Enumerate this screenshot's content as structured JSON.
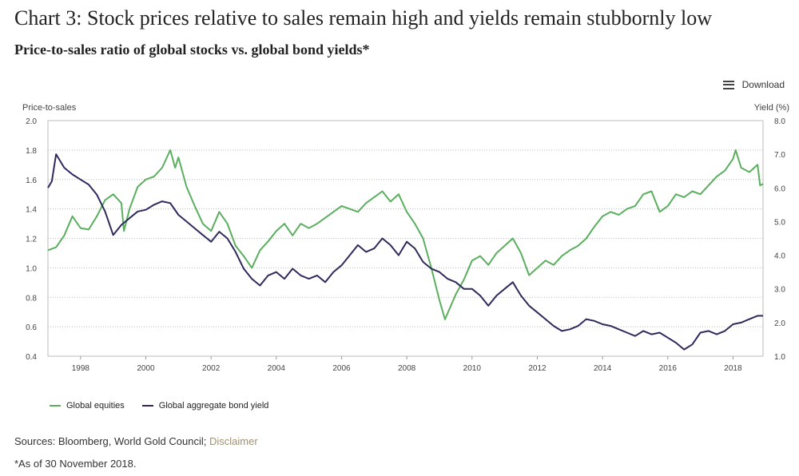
{
  "header": {
    "title": "Chart 3: Stock prices relative to sales remain high and yields remain stubbornly low",
    "subtitle": "Price-to-sales ratio of global stocks vs. global bond yields*"
  },
  "toolbar": {
    "download_label": "Download",
    "download_icon": "menu-icon"
  },
  "chart_data": {
    "type": "line",
    "left_axis": {
      "label": "Price-to-sales",
      "range": [
        0.4,
        2.0
      ],
      "ticks": [
        "2.0",
        "1.8",
        "1.6",
        "1.4",
        "1.2",
        "1.0",
        "0.8",
        "0.6",
        "0.4"
      ]
    },
    "right_axis": {
      "label": "Yield (%)",
      "range": [
        1.0,
        8.0
      ],
      "ticks": [
        "8.0",
        "7.0",
        "6.0",
        "5.0",
        "4.0",
        "3.0",
        "2.0",
        "1.0"
      ]
    },
    "x_axis": {
      "range": [
        1997.0,
        2018.92
      ],
      "ticks": [
        "1998",
        "2000",
        "2002",
        "2004",
        "2006",
        "2008",
        "2010",
        "2012",
        "2014",
        "2016",
        "2018"
      ]
    },
    "grid": "horizontal dotted",
    "legend_position": "bottom-left",
    "series": [
      {
        "name": "Global equities",
        "axis": "left",
        "color": "#5aaf5e",
        "points": [
          [
            1997.0,
            1.12
          ],
          [
            1997.25,
            1.14
          ],
          [
            1997.5,
            1.22
          ],
          [
            1997.75,
            1.35
          ],
          [
            1998.0,
            1.27
          ],
          [
            1998.25,
            1.26
          ],
          [
            1998.5,
            1.35
          ],
          [
            1998.75,
            1.46
          ],
          [
            1999.0,
            1.5
          ],
          [
            1999.25,
            1.44
          ],
          [
            1999.33,
            1.25
          ],
          [
            1999.5,
            1.4
          ],
          [
            1999.75,
            1.55
          ],
          [
            2000.0,
            1.6
          ],
          [
            2000.25,
            1.62
          ],
          [
            2000.5,
            1.68
          ],
          [
            2000.75,
            1.8
          ],
          [
            2000.9,
            1.68
          ],
          [
            2001.0,
            1.75
          ],
          [
            2001.25,
            1.55
          ],
          [
            2001.5,
            1.42
          ],
          [
            2001.75,
            1.3
          ],
          [
            2002.0,
            1.25
          ],
          [
            2002.25,
            1.38
          ],
          [
            2002.5,
            1.3
          ],
          [
            2002.75,
            1.15
          ],
          [
            2003.0,
            1.08
          ],
          [
            2003.25,
            1.0
          ],
          [
            2003.5,
            1.12
          ],
          [
            2003.75,
            1.18
          ],
          [
            2004.0,
            1.25
          ],
          [
            2004.25,
            1.3
          ],
          [
            2004.5,
            1.22
          ],
          [
            2004.75,
            1.3
          ],
          [
            2005.0,
            1.27
          ],
          [
            2005.25,
            1.3
          ],
          [
            2005.5,
            1.34
          ],
          [
            2005.75,
            1.38
          ],
          [
            2006.0,
            1.42
          ],
          [
            2006.25,
            1.4
          ],
          [
            2006.5,
            1.38
          ],
          [
            2006.75,
            1.44
          ],
          [
            2007.0,
            1.48
          ],
          [
            2007.25,
            1.52
          ],
          [
            2007.5,
            1.45
          ],
          [
            2007.75,
            1.5
          ],
          [
            2008.0,
            1.38
          ],
          [
            2008.25,
            1.3
          ],
          [
            2008.5,
            1.2
          ],
          [
            2008.75,
            1.0
          ],
          [
            2009.0,
            0.78
          ],
          [
            2009.17,
            0.65
          ],
          [
            2009.5,
            0.82
          ],
          [
            2009.75,
            0.92
          ],
          [
            2010.0,
            1.05
          ],
          [
            2010.25,
            1.08
          ],
          [
            2010.5,
            1.02
          ],
          [
            2010.75,
            1.1
          ],
          [
            2011.0,
            1.15
          ],
          [
            2011.25,
            1.2
          ],
          [
            2011.5,
            1.1
          ],
          [
            2011.75,
            0.95
          ],
          [
            2012.0,
            1.0
          ],
          [
            2012.25,
            1.05
          ],
          [
            2012.5,
            1.02
          ],
          [
            2012.75,
            1.08
          ],
          [
            2013.0,
            1.12
          ],
          [
            2013.25,
            1.15
          ],
          [
            2013.5,
            1.2
          ],
          [
            2013.75,
            1.28
          ],
          [
            2014.0,
            1.35
          ],
          [
            2014.25,
            1.38
          ],
          [
            2014.5,
            1.36
          ],
          [
            2014.75,
            1.4
          ],
          [
            2015.0,
            1.42
          ],
          [
            2015.25,
            1.5
          ],
          [
            2015.5,
            1.52
          ],
          [
            2015.75,
            1.38
          ],
          [
            2016.0,
            1.42
          ],
          [
            2016.25,
            1.5
          ],
          [
            2016.5,
            1.48
          ],
          [
            2016.75,
            1.52
          ],
          [
            2017.0,
            1.5
          ],
          [
            2017.25,
            1.56
          ],
          [
            2017.5,
            1.62
          ],
          [
            2017.75,
            1.66
          ],
          [
            2018.0,
            1.74
          ],
          [
            2018.08,
            1.8
          ],
          [
            2018.25,
            1.68
          ],
          [
            2018.5,
            1.65
          ],
          [
            2018.75,
            1.7
          ],
          [
            2018.83,
            1.56
          ],
          [
            2018.92,
            1.57
          ]
        ]
      },
      {
        "name": "Global aggregate bond yield",
        "axis": "right",
        "color": "#2e2a5c",
        "points": [
          [
            1997.0,
            6.0
          ],
          [
            1997.12,
            6.2
          ],
          [
            1997.25,
            7.0
          ],
          [
            1997.5,
            6.6
          ],
          [
            1997.75,
            6.4
          ],
          [
            1998.0,
            6.25
          ],
          [
            1998.25,
            6.1
          ],
          [
            1998.5,
            5.8
          ],
          [
            1998.75,
            5.3
          ],
          [
            1999.0,
            4.6
          ],
          [
            1999.25,
            4.9
          ],
          [
            1999.5,
            5.1
          ],
          [
            1999.75,
            5.3
          ],
          [
            2000.0,
            5.35
          ],
          [
            2000.25,
            5.5
          ],
          [
            2000.5,
            5.6
          ],
          [
            2000.75,
            5.55
          ],
          [
            2001.0,
            5.2
          ],
          [
            2001.25,
            5.0
          ],
          [
            2001.5,
            4.8
          ],
          [
            2001.75,
            4.6
          ],
          [
            2002.0,
            4.4
          ],
          [
            2002.25,
            4.7
          ],
          [
            2002.5,
            4.5
          ],
          [
            2002.75,
            4.1
          ],
          [
            2003.0,
            3.6
          ],
          [
            2003.25,
            3.3
          ],
          [
            2003.5,
            3.1
          ],
          [
            2003.75,
            3.4
          ],
          [
            2004.0,
            3.5
          ],
          [
            2004.25,
            3.3
          ],
          [
            2004.5,
            3.6
          ],
          [
            2004.75,
            3.4
          ],
          [
            2005.0,
            3.3
          ],
          [
            2005.25,
            3.4
          ],
          [
            2005.5,
            3.2
          ],
          [
            2005.75,
            3.5
          ],
          [
            2006.0,
            3.7
          ],
          [
            2006.25,
            4.0
          ],
          [
            2006.5,
            4.3
          ],
          [
            2006.75,
            4.1
          ],
          [
            2007.0,
            4.2
          ],
          [
            2007.25,
            4.5
          ],
          [
            2007.5,
            4.3
          ],
          [
            2007.75,
            4.0
          ],
          [
            2008.0,
            4.4
          ],
          [
            2008.25,
            4.2
          ],
          [
            2008.5,
            3.8
          ],
          [
            2008.75,
            3.6
          ],
          [
            2009.0,
            3.5
          ],
          [
            2009.25,
            3.3
          ],
          [
            2009.5,
            3.2
          ],
          [
            2009.75,
            3.0
          ],
          [
            2010.0,
            3.0
          ],
          [
            2010.25,
            2.8
          ],
          [
            2010.5,
            2.5
          ],
          [
            2010.75,
            2.8
          ],
          [
            2011.0,
            3.0
          ],
          [
            2011.25,
            3.2
          ],
          [
            2011.5,
            2.8
          ],
          [
            2011.75,
            2.5
          ],
          [
            2012.0,
            2.3
          ],
          [
            2012.25,
            2.1
          ],
          [
            2012.5,
            1.9
          ],
          [
            2012.75,
            1.75
          ],
          [
            2013.0,
            1.8
          ],
          [
            2013.25,
            1.9
          ],
          [
            2013.5,
            2.1
          ],
          [
            2013.75,
            2.05
          ],
          [
            2014.0,
            1.95
          ],
          [
            2014.25,
            1.9
          ],
          [
            2014.5,
            1.8
          ],
          [
            2014.75,
            1.7
          ],
          [
            2015.0,
            1.6
          ],
          [
            2015.25,
            1.75
          ],
          [
            2015.5,
            1.65
          ],
          [
            2015.75,
            1.7
          ],
          [
            2016.0,
            1.55
          ],
          [
            2016.25,
            1.4
          ],
          [
            2016.5,
            1.2
          ],
          [
            2016.75,
            1.35
          ],
          [
            2017.0,
            1.7
          ],
          [
            2017.25,
            1.75
          ],
          [
            2017.5,
            1.65
          ],
          [
            2017.75,
            1.75
          ],
          [
            2018.0,
            1.95
          ],
          [
            2018.25,
            2.0
          ],
          [
            2018.5,
            2.1
          ],
          [
            2018.75,
            2.2
          ],
          [
            2018.92,
            2.2
          ]
        ]
      }
    ]
  },
  "footer": {
    "sources_prefix": "Sources: Bloomberg, World Gold Council; ",
    "disclaimer_link": "Disclaimer",
    "footnote": "*As of 30 November 2018."
  }
}
